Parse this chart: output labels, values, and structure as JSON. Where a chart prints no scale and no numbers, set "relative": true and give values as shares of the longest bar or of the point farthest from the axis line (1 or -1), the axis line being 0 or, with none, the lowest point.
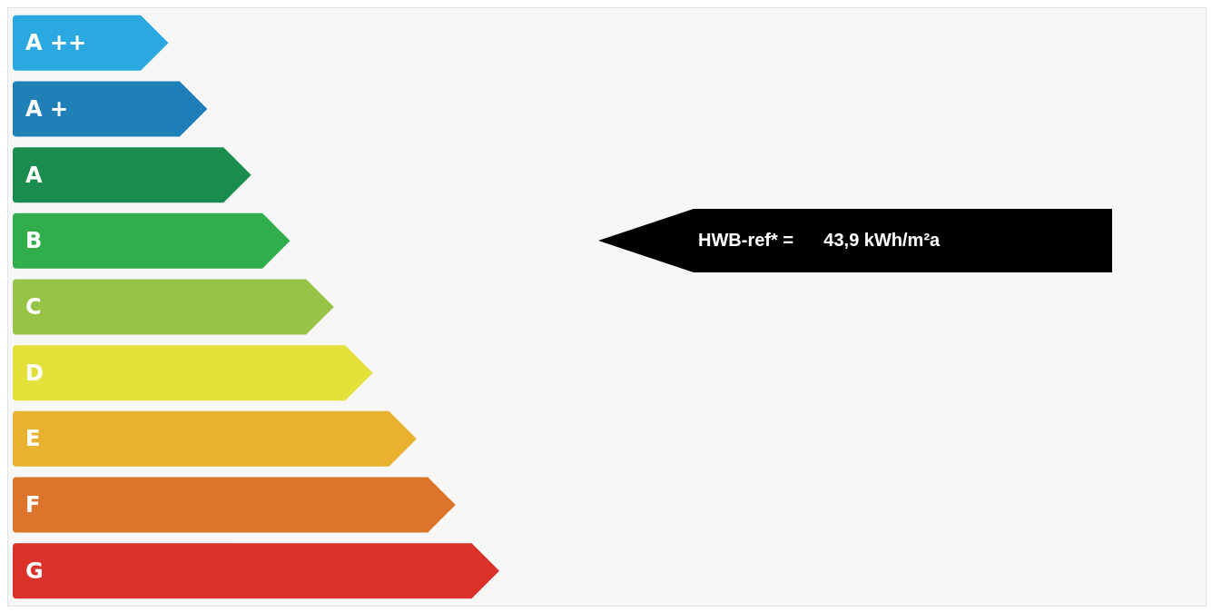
{
  "chart_data": {
    "type": "bar",
    "orientation": "horizontal",
    "relative": true,
    "categories": [
      "A ++",
      "A +",
      "A",
      "B",
      "C",
      "D",
      "E",
      "F",
      "G"
    ],
    "values": [
      0.32,
      0.4,
      0.49,
      0.57,
      0.66,
      0.74,
      0.83,
      0.91,
      1
    ],
    "colors": [
      "#29a9e0",
      "#1f80b8",
      "#1a8c4e",
      "#2fae4b",
      "#97c447",
      "#e3e03a",
      "#e8b22f",
      "#dc742c",
      "#dc3129"
    ],
    "annotations": [
      "HWB-ref* =      43,9 kWh/m²a"
    ]
  }
}
